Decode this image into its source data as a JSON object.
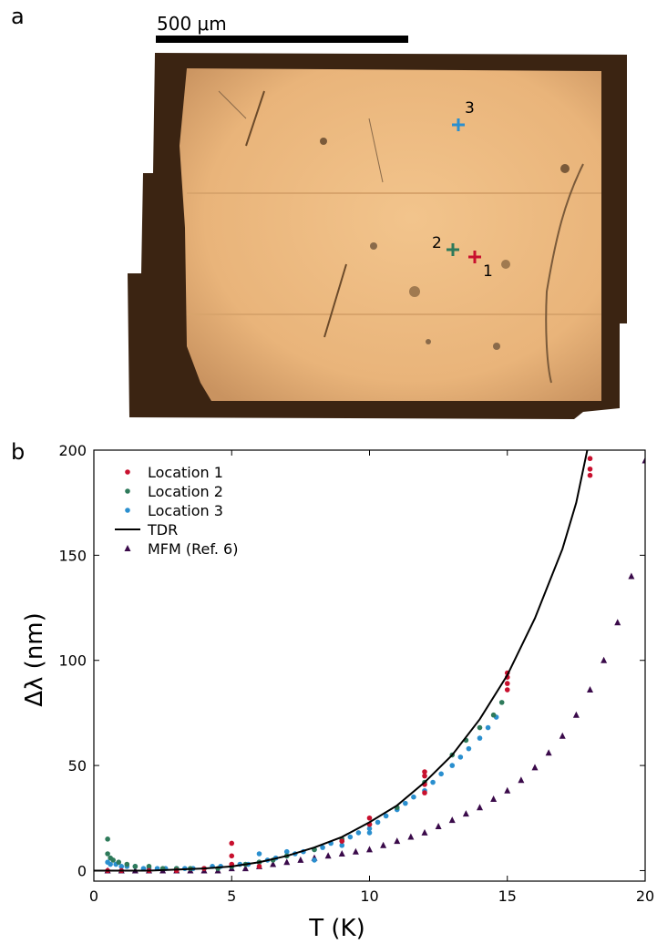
{
  "panel_a": {
    "label": "a",
    "scale_bar_label": "500 μm",
    "markers": [
      {
        "label": "1",
        "color": "#c8102e"
      },
      {
        "label": "2",
        "color": "#2e7a5a"
      },
      {
        "label": "3",
        "color": "#2a8fcf"
      }
    ]
  },
  "panel_b": {
    "label": "b"
  },
  "chart_data": {
    "type": "scatter",
    "xlabel": "T (K)",
    "ylabel": "Δλ (nm)",
    "xlim": [
      0,
      20
    ],
    "ylim": [
      -5,
      200
    ],
    "xticks": [
      0,
      5,
      10,
      15,
      20
    ],
    "yticks": [
      0,
      50,
      100,
      150,
      200
    ],
    "legend_position": "top-left",
    "series": [
      {
        "name": "Location 1",
        "marker": "circle",
        "color": "#c8102e",
        "x": [
          0.5,
          1.0,
          2.0,
          3.0,
          4.0,
          5.0,
          5.0,
          5.0,
          6.0,
          9.0,
          10.0,
          10.0,
          12.0,
          12.0,
          12.0,
          12.0,
          15.0,
          15.0,
          15.0,
          15.0,
          18.0,
          18.0,
          18.0
        ],
        "y": [
          0,
          0,
          0,
          0,
          1,
          13,
          7,
          3,
          2,
          14,
          25,
          22,
          37,
          41,
          45,
          47,
          86,
          89,
          92,
          94,
          188,
          191,
          196
        ]
      },
      {
        "name": "Location 2",
        "marker": "circle",
        "color": "#2e7a5a",
        "x": [
          0.5,
          0.5,
          0.6,
          0.7,
          0.9,
          1.2,
          1.5,
          2.0,
          2.5,
          3.0,
          3.5,
          4.0,
          4.5,
          5.0,
          5.5,
          6.0,
          6.5,
          7.0,
          8.0,
          9.0,
          10.0,
          11.0,
          12.0,
          13.0,
          13.5,
          14.0,
          14.5,
          14.8
        ],
        "y": [
          15,
          8,
          6,
          5,
          4,
          3,
          2,
          2,
          1,
          1,
          1,
          1,
          1,
          2,
          3,
          4,
          5,
          7,
          10,
          15,
          22,
          30,
          42,
          55,
          62,
          68,
          74,
          80
        ]
      },
      {
        "name": "Location 3",
        "marker": "circle",
        "color": "#2a8fcf",
        "x": [
          0.5,
          0.6,
          0.8,
          1.0,
          1.2,
          1.5,
          1.8,
          2.0,
          2.3,
          2.6,
          3.0,
          3.3,
          3.6,
          4.0,
          4.3,
          4.6,
          5.0,
          5.3,
          5.6,
          6.0,
          6.3,
          6.6,
          7.0,
          7.3,
          7.6,
          8.0,
          8.3,
          8.6,
          9.0,
          9.3,
          9.6,
          10.0,
          10.3,
          10.6,
          11.0,
          11.3,
          11.6,
          12.0,
          12.3,
          12.6,
          13.0,
          13.3,
          13.6,
          14.0,
          14.3,
          14.6,
          6.0,
          7.0,
          8.0,
          9.0,
          10.0
        ],
        "y": [
          4,
          3,
          3,
          2,
          2,
          2,
          1,
          1,
          1,
          1,
          1,
          1,
          1,
          1,
          2,
          2,
          2,
          3,
          3,
          4,
          5,
          6,
          7,
          8,
          9,
          10,
          11,
          13,
          14,
          16,
          18,
          20,
          23,
          26,
          29,
          32,
          35,
          38,
          42,
          46,
          50,
          54,
          58,
          63,
          68,
          73,
          8,
          9,
          5,
          12,
          18
        ]
      },
      {
        "name": "MFM (Ref. 6)",
        "marker": "triangle",
        "color": "#3a0a4a",
        "x": [
          0.5,
          1.0,
          1.5,
          2.0,
          2.5,
          3.0,
          3.5,
          4.0,
          4.5,
          5.0,
          5.5,
          6.0,
          6.5,
          7.0,
          7.5,
          8.0,
          8.5,
          9.0,
          9.5,
          10.0,
          10.5,
          11.0,
          11.5,
          12.0,
          12.5,
          13.0,
          13.5,
          14.0,
          14.5,
          15.0,
          15.5,
          16.0,
          16.5,
          17.0,
          17.5,
          18.0,
          18.5,
          19.0,
          19.5,
          20.0
        ],
        "y": [
          0,
          0,
          0,
          0,
          0,
          0,
          0,
          0,
          0,
          1,
          1,
          2,
          3,
          4,
          5,
          6,
          7,
          8,
          9,
          10,
          12,
          14,
          16,
          18,
          21,
          24,
          27,
          30,
          34,
          38,
          43,
          49,
          56,
          64,
          74,
          86,
          100,
          118,
          140,
          195
        ]
      },
      {
        "name": "TDR",
        "marker": "line",
        "color": "#000000",
        "x": [
          0,
          2,
          4,
          5,
          6,
          7,
          8,
          9,
          10,
          11,
          12,
          13,
          14,
          15,
          16,
          17,
          17.5,
          17.9
        ],
        "y": [
          0,
          0,
          1,
          2,
          4,
          7,
          11,
          16,
          23,
          31,
          42,
          55,
          72,
          93,
          120,
          153,
          175,
          200
        ]
      }
    ],
    "legend_order": [
      "Location 1",
      "Location 2",
      "Location 3",
      "TDR",
      "MFM (Ref. 6)"
    ]
  }
}
